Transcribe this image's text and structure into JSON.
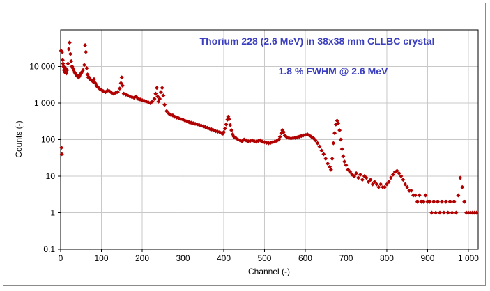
{
  "chart_data": {
    "type": "scatter",
    "title": "",
    "annotations": [
      "Thorium 228 (2.6 MeV) in 38x38 mm CLLBC crystal",
      "1.8 % FWHM @ 2.6 MeV"
    ],
    "xlabel": "Channel (-)",
    "ylabel": "Counts (-)",
    "xlim": [
      0,
      1024
    ],
    "ylim": [
      0.1,
      100000
    ],
    "yscale": "log",
    "x_ticks": [
      0,
      100,
      200,
      300,
      400,
      500,
      600,
      700,
      800,
      900,
      1000
    ],
    "x_tick_labels": [
      "0",
      "100",
      "200",
      "300",
      "400",
      "500",
      "600",
      "700",
      "800",
      "900",
      "1 000"
    ],
    "y_ticks": [
      0.1,
      1,
      10,
      100,
      1000,
      10000
    ],
    "y_tick_labels": [
      "0.1",
      "1",
      "10",
      "100",
      "1 000",
      "10 000"
    ],
    "grid": true,
    "legend": "none",
    "series": [
      {
        "color": "#b00000",
        "marker": "diamond",
        "points": [
          [
            1,
            27000
          ],
          [
            2,
            60
          ],
          [
            3,
            40
          ],
          [
            4,
            25000
          ],
          [
            5,
            15000
          ],
          [
            6,
            12000
          ],
          [
            7,
            10000
          ],
          [
            8,
            8000
          ],
          [
            10,
            7000
          ],
          [
            12,
            9000
          ],
          [
            14,
            6500
          ],
          [
            16,
            8000
          ],
          [
            18,
            12000
          ],
          [
            20,
            30000
          ],
          [
            22,
            45000
          ],
          [
            24,
            22000
          ],
          [
            26,
            14000
          ],
          [
            28,
            10000
          ],
          [
            30,
            9000
          ],
          [
            32,
            8000
          ],
          [
            34,
            7000
          ],
          [
            36,
            6500
          ],
          [
            38,
            6000
          ],
          [
            40,
            5500
          ],
          [
            42,
            5500
          ],
          [
            44,
            5000
          ],
          [
            46,
            5500
          ],
          [
            48,
            6000
          ],
          [
            50,
            6500
          ],
          [
            52,
            7000
          ],
          [
            55,
            8000
          ],
          [
            58,
            11000
          ],
          [
            60,
            38000
          ],
          [
            62,
            25000
          ],
          [
            64,
            9000
          ],
          [
            66,
            6000
          ],
          [
            68,
            5000
          ],
          [
            70,
            5000
          ],
          [
            72,
            4500
          ],
          [
            75,
            4200
          ],
          [
            78,
            4000
          ],
          [
            80,
            3800
          ],
          [
            82,
            4500
          ],
          [
            85,
            3500
          ],
          [
            88,
            3000
          ],
          [
            90,
            2800
          ],
          [
            95,
            2500
          ],
          [
            100,
            2300
          ],
          [
            105,
            2100
          ],
          [
            110,
            2000
          ],
          [
            115,
            2200
          ],
          [
            120,
            2100
          ],
          [
            125,
            1900
          ],
          [
            130,
            1800
          ],
          [
            135,
            1900
          ],
          [
            140,
            2000
          ],
          [
            145,
            2500
          ],
          [
            148,
            3500
          ],
          [
            150,
            5000
          ],
          [
            152,
            3000
          ],
          [
            155,
            1800
          ],
          [
            160,
            1700
          ],
          [
            165,
            1600
          ],
          [
            170,
            1500
          ],
          [
            175,
            1450
          ],
          [
            180,
            1400
          ],
          [
            185,
            1500
          ],
          [
            190,
            1300
          ],
          [
            195,
            1250
          ],
          [
            200,
            1200
          ],
          [
            205,
            1150
          ],
          [
            210,
            1100
          ],
          [
            215,
            1050
          ],
          [
            220,
            1000
          ],
          [
            225,
            1100
          ],
          [
            230,
            1300
          ],
          [
            233,
            1800
          ],
          [
            236,
            2600
          ],
          [
            238,
            1500
          ],
          [
            240,
            1100
          ],
          [
            243,
            1300
          ],
          [
            246,
            2000
          ],
          [
            249,
            2600
          ],
          [
            252,
            1600
          ],
          [
            255,
            900
          ],
          [
            260,
            600
          ],
          [
            265,
            520
          ],
          [
            270,
            480
          ],
          [
            275,
            460
          ],
          [
            280,
            420
          ],
          [
            285,
            400
          ],
          [
            290,
            380
          ],
          [
            295,
            360
          ],
          [
            300,
            350
          ],
          [
            305,
            330
          ],
          [
            310,
            320
          ],
          [
            315,
            300
          ],
          [
            320,
            290
          ],
          [
            325,
            280
          ],
          [
            330,
            270
          ],
          [
            335,
            260
          ],
          [
            340,
            250
          ],
          [
            345,
            240
          ],
          [
            350,
            230
          ],
          [
            355,
            220
          ],
          [
            360,
            210
          ],
          [
            365,
            200
          ],
          [
            370,
            190
          ],
          [
            375,
            180
          ],
          [
            380,
            170
          ],
          [
            385,
            165
          ],
          [
            390,
            160
          ],
          [
            395,
            150
          ],
          [
            398,
            145
          ],
          [
            400,
            160
          ],
          [
            403,
            200
          ],
          [
            406,
            260
          ],
          [
            409,
            350
          ],
          [
            411,
            420
          ],
          [
            413,
            360
          ],
          [
            416,
            250
          ],
          [
            419,
            180
          ],
          [
            422,
            140
          ],
          [
            425,
            120
          ],
          [
            430,
            110
          ],
          [
            435,
            100
          ],
          [
            440,
            95
          ],
          [
            445,
            90
          ],
          [
            450,
            100
          ],
          [
            455,
            95
          ],
          [
            460,
            90
          ],
          [
            465,
            92
          ],
          [
            470,
            95
          ],
          [
            475,
            90
          ],
          [
            480,
            88
          ],
          [
            485,
            92
          ],
          [
            490,
            95
          ],
          [
            495,
            88
          ],
          [
            500,
            85
          ],
          [
            505,
            82
          ],
          [
            510,
            80
          ],
          [
            515,
            82
          ],
          [
            520,
            85
          ],
          [
            525,
            88
          ],
          [
            530,
            92
          ],
          [
            535,
            100
          ],
          [
            538,
            120
          ],
          [
            541,
            150
          ],
          [
            544,
            180
          ],
          [
            547,
            160
          ],
          [
            550,
            130
          ],
          [
            555,
            115
          ],
          [
            560,
            110
          ],
          [
            565,
            108
          ],
          [
            570,
            110
          ],
          [
            575,
            112
          ],
          [
            580,
            115
          ],
          [
            585,
            120
          ],
          [
            590,
            125
          ],
          [
            595,
            130
          ],
          [
            600,
            135
          ],
          [
            605,
            140
          ],
          [
            610,
            130
          ],
          [
            615,
            120
          ],
          [
            620,
            110
          ],
          [
            625,
            95
          ],
          [
            630,
            80
          ],
          [
            635,
            65
          ],
          [
            640,
            50
          ],
          [
            645,
            40
          ],
          [
            650,
            30
          ],
          [
            655,
            22
          ],
          [
            660,
            18
          ],
          [
            663,
            15
          ],
          [
            666,
            30
          ],
          [
            669,
            80
          ],
          [
            672,
            150
          ],
          [
            675,
            260
          ],
          [
            678,
            330
          ],
          [
            681,
            280
          ],
          [
            684,
            180
          ],
          [
            687,
            100
          ],
          [
            690,
            55
          ],
          [
            693,
            35
          ],
          [
            696,
            25
          ],
          [
            700,
            20
          ],
          [
            705,
            15
          ],
          [
            710,
            13
          ],
          [
            715,
            11
          ],
          [
            720,
            10
          ],
          [
            725,
            12
          ],
          [
            730,
            9
          ],
          [
            735,
            11
          ],
          [
            740,
            8
          ],
          [
            745,
            10
          ],
          [
            750,
            9
          ],
          [
            755,
            7
          ],
          [
            760,
            8
          ],
          [
            765,
            6
          ],
          [
            770,
            7
          ],
          [
            775,
            6
          ],
          [
            780,
            5
          ],
          [
            785,
            6
          ],
          [
            790,
            5
          ],
          [
            795,
            5
          ],
          [
            800,
            6
          ],
          [
            805,
            7
          ],
          [
            810,
            9
          ],
          [
            815,
            11
          ],
          [
            820,
            13
          ],
          [
            825,
            14
          ],
          [
            830,
            12
          ],
          [
            835,
            10
          ],
          [
            840,
            8
          ],
          [
            845,
            6
          ],
          [
            850,
            5
          ],
          [
            855,
            4
          ],
          [
            860,
            4
          ],
          [
            865,
            3
          ],
          [
            870,
            3
          ],
          [
            875,
            2
          ],
          [
            880,
            3
          ],
          [
            885,
            2
          ],
          [
            890,
            2
          ],
          [
            895,
            3
          ],
          [
            900,
            2
          ],
          [
            905,
            2
          ],
          [
            910,
            1
          ],
          [
            915,
            2
          ],
          [
            920,
            1
          ],
          [
            925,
            2
          ],
          [
            930,
            1
          ],
          [
            935,
            2
          ],
          [
            940,
            1
          ],
          [
            945,
            2
          ],
          [
            950,
            1
          ],
          [
            955,
            2
          ],
          [
            960,
            1
          ],
          [
            965,
            2
          ],
          [
            970,
            1
          ],
          [
            975,
            3
          ],
          [
            980,
            9
          ],
          [
            985,
            5
          ],
          [
            990,
            2
          ],
          [
            995,
            1
          ],
          [
            1000,
            1
          ],
          [
            1005,
            1
          ],
          [
            1010,
            1
          ],
          [
            1015,
            1
          ],
          [
            1020,
            1
          ]
        ]
      }
    ]
  }
}
